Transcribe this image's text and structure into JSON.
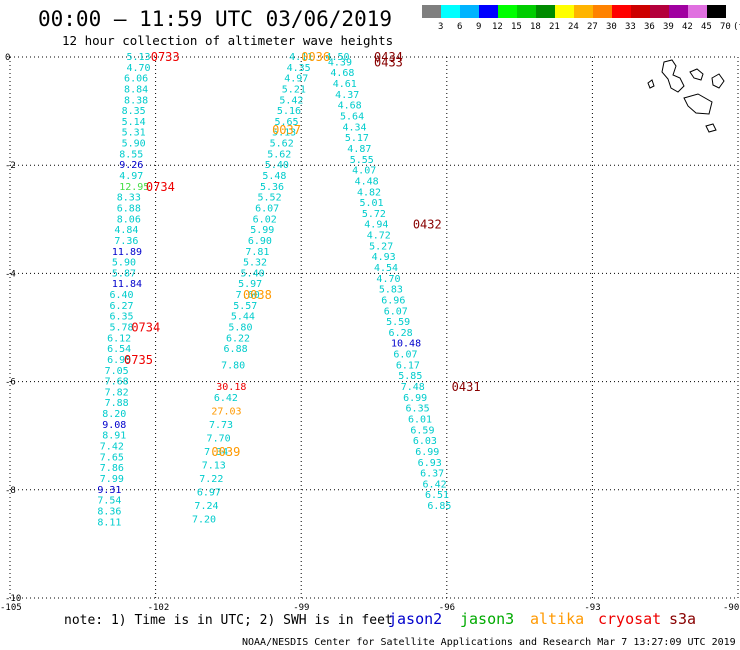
{
  "title": "00:00 – 11:59 UTC 03/06/2019",
  "subtitle": "12 hour collection of altimeter wave heights",
  "note": "note:  1) Time is in UTC;  2) SWH is in feet",
  "credit": "NOAA/NESDIS Center for Satellite Applications and Research    Mar  7 13:27:09 UTC 2019",
  "legend": {
    "labels": [
      "3",
      "6",
      "9",
      "12",
      "15",
      "18",
      "21",
      "24",
      "27",
      "30",
      "33",
      "36",
      "39",
      "42",
      "45",
      "70",
      "(ft)"
    ],
    "colors": [
      "#7f7f7f",
      "#00ffff",
      "#00b4ff",
      "#0000ff",
      "#00ff00",
      "#00cd00",
      "#008b00",
      "#ffff00",
      "#ffb400",
      "#ff8200",
      "#ff0000",
      "#cd0000",
      "#b4003c",
      "#a000a0",
      "#e070e0",
      "#000000"
    ]
  },
  "satellites": [
    {
      "name": "jason2",
      "color": "#0000cc"
    },
    {
      "name": "jason3",
      "color": "#00aa00"
    },
    {
      "name": "altika",
      "color": "#ff9900"
    },
    {
      "name": "cryosat",
      "color": "#ee0000"
    },
    {
      "name": "s3a",
      "color": "#880000"
    }
  ],
  "chart_data": {
    "type": "scatter",
    "xlim": [
      -105,
      -90
    ],
    "ylim": [
      -10,
      0
    ],
    "x_ticks": [
      "-105",
      "-102",
      "-99",
      "-96",
      "-93",
      "-90"
    ],
    "y_ticks": [
      "0",
      "-2",
      "-4",
      "-6",
      "-8",
      "-10"
    ],
    "grid": true,
    "series": [
      {
        "name": "track1",
        "points": [
          {
            "x": -102.6,
            "y": 0.0,
            "v": "5.13",
            "c": "#00cccc"
          },
          {
            "x": -102.6,
            "y": -0.2,
            "v": "4.70",
            "c": "#00cccc"
          },
          {
            "x": -102.65,
            "y": -0.4,
            "v": "6.06",
            "c": "#00cccc"
          },
          {
            "x": -102.65,
            "y": -0.6,
            "v": "8.84",
            "c": "#00cccc"
          },
          {
            "x": -102.65,
            "y": -0.8,
            "v": "8.38",
            "c": "#00cccc"
          },
          {
            "x": -102.7,
            "y": -1.0,
            "v": "8.35",
            "c": "#00cccc"
          },
          {
            "x": -102.7,
            "y": -1.2,
            "v": "5.14",
            "c": "#00cccc"
          },
          {
            "x": -102.7,
            "y": -1.4,
            "v": "5.31",
            "c": "#00cccc"
          },
          {
            "x": -102.7,
            "y": -1.6,
            "v": "5.90",
            "c": "#00cccc"
          },
          {
            "x": -102.75,
            "y": -1.8,
            "v": "8.55",
            "c": "#00cccc"
          },
          {
            "x": -102.75,
            "y": -2.0,
            "v": "9.26",
            "c": "#0000cc"
          },
          {
            "x": -102.75,
            "y": -2.2,
            "v": "4.97",
            "c": "#00cccc"
          },
          {
            "x": -102.75,
            "y": -2.4,
            "v": "12.95",
            "c": "#44dd44"
          },
          {
            "x": -102.8,
            "y": -2.6,
            "v": "8.33",
            "c": "#00cccc"
          },
          {
            "x": -102.8,
            "y": -2.8,
            "v": "6.88",
            "c": "#00cccc"
          },
          {
            "x": -102.8,
            "y": -3.0,
            "v": "8.06",
            "c": "#00cccc"
          },
          {
            "x": -102.85,
            "y": -3.2,
            "v": "4.84",
            "c": "#00cccc"
          },
          {
            "x": -102.85,
            "y": -3.4,
            "v": "7.36",
            "c": "#00cccc"
          },
          {
            "x": -102.9,
            "y": -3.6,
            "v": "11.89",
            "c": "#0000cc"
          },
          {
            "x": -102.9,
            "y": -3.8,
            "v": "5.90",
            "c": "#00cccc"
          },
          {
            "x": -102.9,
            "y": -4.0,
            "v": "5.87",
            "c": "#00cccc"
          },
          {
            "x": -102.9,
            "y": -4.2,
            "v": "11.84",
            "c": "#0000cc"
          },
          {
            "x": -102.95,
            "y": -4.4,
            "v": "6.40",
            "c": "#00cccc"
          },
          {
            "x": -102.95,
            "y": -4.6,
            "v": "6.27",
            "c": "#00cccc"
          },
          {
            "x": -102.95,
            "y": -4.8,
            "v": "6.35",
            "c": "#00cccc"
          },
          {
            "x": -102.95,
            "y": -5.0,
            "v": "5.78",
            "c": "#00cccc"
          },
          {
            "x": -103.0,
            "y": -5.2,
            "v": "6.12",
            "c": "#00cccc"
          },
          {
            "x": -103.0,
            "y": -5.4,
            "v": "6.54",
            "c": "#00cccc"
          },
          {
            "x": -103.0,
            "y": -5.6,
            "v": "6.95",
            "c": "#00cccc"
          },
          {
            "x": -103.05,
            "y": -5.8,
            "v": "7.05",
            "c": "#00cccc"
          },
          {
            "x": -103.05,
            "y": -6.0,
            "v": "7.68",
            "c": "#00cccc"
          },
          {
            "x": -103.05,
            "y": -6.2,
            "v": "7.82",
            "c": "#00cccc"
          },
          {
            "x": -103.05,
            "y": -6.4,
            "v": "7.88",
            "c": "#00cccc"
          },
          {
            "x": -103.1,
            "y": -6.6,
            "v": "8.20",
            "c": "#00cccc"
          },
          {
            "x": -103.1,
            "y": -6.8,
            "v": "9.08",
            "c": "#0000cc"
          },
          {
            "x": -103.1,
            "y": -7.0,
            "v": "8.91",
            "c": "#00cccc"
          },
          {
            "x": -103.15,
            "y": -7.2,
            "v": "7.42",
            "c": "#00cccc"
          },
          {
            "x": -103.15,
            "y": -7.4,
            "v": "7.65",
            "c": "#00cccc"
          },
          {
            "x": -103.15,
            "y": -7.6,
            "v": "7.86",
            "c": "#00cccc"
          },
          {
            "x": -103.15,
            "y": -7.8,
            "v": "7.99",
            "c": "#00cccc"
          },
          {
            "x": -103.2,
            "y": -8.0,
            "v": "9.31",
            "c": "#0000cc"
          },
          {
            "x": -103.2,
            "y": -8.2,
            "v": "7.54",
            "c": "#00cccc"
          },
          {
            "x": -103.2,
            "y": -8.4,
            "v": "8.36",
            "c": "#00cccc"
          },
          {
            "x": -103.2,
            "y": -8.6,
            "v": "8.11",
            "c": "#00cccc"
          }
        ]
      },
      {
        "name": "track2",
        "points": [
          {
            "x": -99.25,
            "y": 0.0,
            "v": "4.11",
            "c": "#00cccc"
          },
          {
            "x": -99.3,
            "y": -0.2,
            "v": "4.35",
            "c": "#00cccc"
          },
          {
            "x": -99.35,
            "y": -0.4,
            "v": "4.97",
            "c": "#00cccc"
          },
          {
            "x": -99.4,
            "y": -0.6,
            "v": "5.21",
            "c": "#00cccc"
          },
          {
            "x": -99.45,
            "y": -0.8,
            "v": "5.42",
            "c": "#00cccc"
          },
          {
            "x": -99.5,
            "y": -1.0,
            "v": "5.16",
            "c": "#00cccc"
          },
          {
            "x": -99.55,
            "y": -1.2,
            "v": "5.65",
            "c": "#00cccc"
          },
          {
            "x": -99.6,
            "y": -1.4,
            "v": "5.13",
            "c": "#00cccc"
          },
          {
            "x": -99.65,
            "y": -1.6,
            "v": "5.62",
            "c": "#00cccc"
          },
          {
            "x": -99.7,
            "y": -1.8,
            "v": "5.62",
            "c": "#00cccc"
          },
          {
            "x": -99.75,
            "y": -2.0,
            "v": "5.40",
            "c": "#00cccc"
          },
          {
            "x": -99.8,
            "y": -2.2,
            "v": "5.48",
            "c": "#00cccc"
          },
          {
            "x": -99.85,
            "y": -2.4,
            "v": "5.36",
            "c": "#00cccc"
          },
          {
            "x": -99.9,
            "y": -2.6,
            "v": "5.52",
            "c": "#00cccc"
          },
          {
            "x": -99.95,
            "y": -2.8,
            "v": "6.07",
            "c": "#00cccc"
          },
          {
            "x": -100.0,
            "y": -3.0,
            "v": "6.02",
            "c": "#00cccc"
          },
          {
            "x": -100.05,
            "y": -3.2,
            "v": "5.99",
            "c": "#00cccc"
          },
          {
            "x": -100.1,
            "y": -3.4,
            "v": "6.90",
            "c": "#00cccc"
          },
          {
            "x": -100.15,
            "y": -3.6,
            "v": "7.81",
            "c": "#00cccc"
          },
          {
            "x": -100.2,
            "y": -3.8,
            "v": "5.32",
            "c": "#00cccc"
          },
          {
            "x": -100.25,
            "y": -4.0,
            "v": "5.40",
            "c": "#00cccc"
          },
          {
            "x": -100.3,
            "y": -4.2,
            "v": "5.97",
            "c": "#00cccc"
          },
          {
            "x": -100.35,
            "y": -4.4,
            "v": "7.60",
            "c": "#00cccc"
          },
          {
            "x": -100.4,
            "y": -4.6,
            "v": "5.57",
            "c": "#00cccc"
          },
          {
            "x": -100.45,
            "y": -4.8,
            "v": "5.44",
            "c": "#00cccc"
          },
          {
            "x": -100.5,
            "y": -5.0,
            "v": "5.80",
            "c": "#00cccc"
          },
          {
            "x": -100.55,
            "y": -5.2,
            "v": "6.22",
            "c": "#00cccc"
          },
          {
            "x": -100.6,
            "y": -5.4,
            "v": "6.88",
            "c": "#00cccc"
          },
          {
            "x": -100.65,
            "y": -5.7,
            "v": "7.80",
            "c": "#00cccc"
          },
          {
            "x": -100.75,
            "y": -6.1,
            "v": "30.18",
            "c": "#ee0000"
          },
          {
            "x": -100.8,
            "y": -6.3,
            "v": "6.42",
            "c": "#00cccc"
          },
          {
            "x": -100.85,
            "y": -6.55,
            "v": "27.03",
            "c": "#ff9900"
          },
          {
            "x": -100.9,
            "y": -6.8,
            "v": "7.73",
            "c": "#00cccc"
          },
          {
            "x": -100.95,
            "y": -7.05,
            "v": "7.70",
            "c": "#00cccc"
          },
          {
            "x": -101.0,
            "y": -7.3,
            "v": "7.34",
            "c": "#00cccc"
          },
          {
            "x": -101.05,
            "y": -7.55,
            "v": "7.13",
            "c": "#00cccc"
          },
          {
            "x": -101.1,
            "y": -7.8,
            "v": "7.22",
            "c": "#00cccc"
          },
          {
            "x": -101.15,
            "y": -8.05,
            "v": "6.97",
            "c": "#00cccc"
          },
          {
            "x": -101.2,
            "y": -8.3,
            "v": "7.24",
            "c": "#00cccc"
          },
          {
            "x": -101.25,
            "y": -8.55,
            "v": "7.20",
            "c": "#00cccc"
          }
        ]
      },
      {
        "name": "track3",
        "points": [
          {
            "x": -98.5,
            "y": 0.0,
            "v": "4.50",
            "c": "#00cccc"
          },
          {
            "x": -98.45,
            "y": -0.1,
            "v": "4.39",
            "c": "#00cccc"
          },
          {
            "x": -98.4,
            "y": -0.3,
            "v": "4.68",
            "c": "#00cccc"
          },
          {
            "x": -98.35,
            "y": -0.5,
            "v": "4.61",
            "c": "#00cccc"
          },
          {
            "x": -98.3,
            "y": -0.7,
            "v": "4.37",
            "c": "#00cccc"
          },
          {
            "x": -98.25,
            "y": -0.9,
            "v": "4.68",
            "c": "#00cccc"
          },
          {
            "x": -98.2,
            "y": -1.1,
            "v": "5.64",
            "c": "#00cccc"
          },
          {
            "x": -98.15,
            "y": -1.3,
            "v": "4.34",
            "c": "#00cccc"
          },
          {
            "x": -98.1,
            "y": -1.5,
            "v": "5.17",
            "c": "#00cccc"
          },
          {
            "x": -98.05,
            "y": -1.7,
            "v": "4.87",
            "c": "#00cccc"
          },
          {
            "x": -98.0,
            "y": -1.9,
            "v": "5.55",
            "c": "#00cccc"
          },
          {
            "x": -97.95,
            "y": -2.1,
            "v": "4.07",
            "c": "#00cccc"
          },
          {
            "x": -97.9,
            "y": -2.3,
            "v": "4.48",
            "c": "#00cccc"
          },
          {
            "x": -97.85,
            "y": -2.5,
            "v": "4.82",
            "c": "#00cccc"
          },
          {
            "x": -97.8,
            "y": -2.7,
            "v": "5.01",
            "c": "#00cccc"
          },
          {
            "x": -97.75,
            "y": -2.9,
            "v": "5.72",
            "c": "#00cccc"
          },
          {
            "x": -97.7,
            "y": -3.1,
            "v": "4.94",
            "c": "#00cccc"
          },
          {
            "x": -97.65,
            "y": -3.3,
            "v": "4.72",
            "c": "#00cccc"
          },
          {
            "x": -97.6,
            "y": -3.5,
            "v": "5.27",
            "c": "#00cccc"
          },
          {
            "x": -97.55,
            "y": -3.7,
            "v": "4.93",
            "c": "#00cccc"
          },
          {
            "x": -97.5,
            "y": -3.9,
            "v": "4.54",
            "c": "#00cccc"
          },
          {
            "x": -97.45,
            "y": -4.1,
            "v": "4.70",
            "c": "#00cccc"
          },
          {
            "x": -97.4,
            "y": -4.3,
            "v": "5.83",
            "c": "#00cccc"
          },
          {
            "x": -97.35,
            "y": -4.5,
            "v": "6.96",
            "c": "#00cccc"
          },
          {
            "x": -97.3,
            "y": -4.7,
            "v": "6.07",
            "c": "#00cccc"
          },
          {
            "x": -97.25,
            "y": -4.9,
            "v": "5.59",
            "c": "#00cccc"
          },
          {
            "x": -97.2,
            "y": -5.1,
            "v": "6.28",
            "c": "#00cccc"
          },
          {
            "x": -97.15,
            "y": -5.3,
            "v": "10.48",
            "c": "#0000cc"
          },
          {
            "x": -97.1,
            "y": -5.5,
            "v": "6.07",
            "c": "#00cccc"
          },
          {
            "x": -97.05,
            "y": -5.7,
            "v": "6.17",
            "c": "#00cccc"
          },
          {
            "x": -97.0,
            "y": -5.9,
            "v": "5.85",
            "c": "#00cccc"
          },
          {
            "x": -96.95,
            "y": -6.1,
            "v": "7.48",
            "c": "#00cccc"
          },
          {
            "x": -96.9,
            "y": -6.3,
            "v": "6.99",
            "c": "#00cccc"
          },
          {
            "x": -96.85,
            "y": -6.5,
            "v": "6.35",
            "c": "#00cccc"
          },
          {
            "x": -96.8,
            "y": -6.7,
            "v": "6.01",
            "c": "#00cccc"
          },
          {
            "x": -96.75,
            "y": -6.9,
            "v": "6.59",
            "c": "#00cccc"
          },
          {
            "x": -96.7,
            "y": -7.1,
            "v": "6.03",
            "c": "#00cccc"
          },
          {
            "x": -96.65,
            "y": -7.3,
            "v": "6.99",
            "c": "#00cccc"
          },
          {
            "x": -96.6,
            "y": -7.5,
            "v": "6.93",
            "c": "#00cccc"
          },
          {
            "x": -96.55,
            "y": -7.7,
            "v": "6.37",
            "c": "#00cccc"
          },
          {
            "x": -96.5,
            "y": -7.9,
            "v": "6.42",
            "c": "#00cccc"
          },
          {
            "x": -96.45,
            "y": -8.1,
            "v": "6.51",
            "c": "#00cccc"
          },
          {
            "x": -96.4,
            "y": -8.3,
            "v": "6.85",
            "c": "#00cccc"
          }
        ]
      }
    ],
    "time_labels": [
      {
        "x": -102.1,
        "y": 0.0,
        "t": "0733",
        "c": "#ee0000"
      },
      {
        "x": -102.2,
        "y": -2.4,
        "t": "0734",
        "c": "#ee0000"
      },
      {
        "x": -102.5,
        "y": -5.0,
        "t": "0734",
        "c": "#ee0000"
      },
      {
        "x": -102.65,
        "y": -5.6,
        "t": "0735",
        "c": "#ee0000"
      },
      {
        "x": -99.0,
        "y": 0.0,
        "t": "0036",
        "c": "#ff9900"
      },
      {
        "x": -99.6,
        "y": -1.35,
        "t": "0037",
        "c": "#ff9900"
      },
      {
        "x": -100.2,
        "y": -4.4,
        "t": "0038",
        "c": "#ff9900"
      },
      {
        "x": -100.85,
        "y": -7.3,
        "t": "0039",
        "c": "#ff9900"
      },
      {
        "x": -97.5,
        "y": 0.0,
        "t": "0434",
        "c": "#880000"
      },
      {
        "x": -97.5,
        "y": -0.1,
        "t": "0433",
        "c": "#880000"
      },
      {
        "x": -96.7,
        "y": -3.1,
        "t": "0432",
        "c": "#880000"
      },
      {
        "x": -95.9,
        "y": -6.1,
        "t": "0431",
        "c": "#880000"
      }
    ]
  }
}
